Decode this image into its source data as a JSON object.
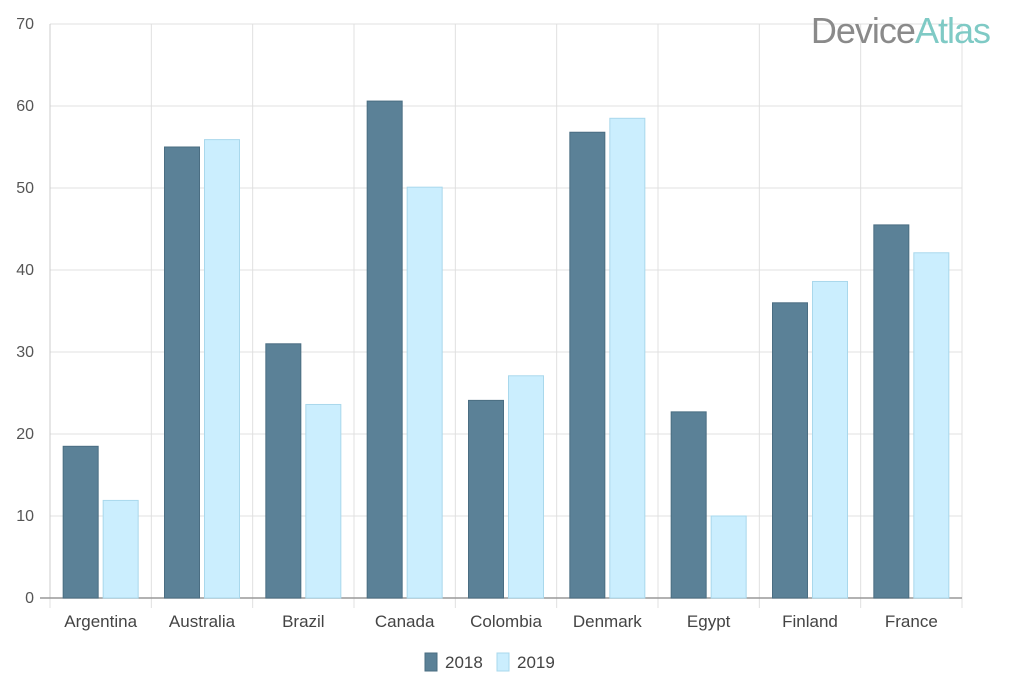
{
  "brand": {
    "logo_part1": "Device",
    "logo_part2": "Atlas",
    "logo_color1": "#8a8a8a",
    "logo_color2": "#7fcac5"
  },
  "chart_data": {
    "type": "bar",
    "categories": [
      "Argentina",
      "Australia",
      "Brazil",
      "Canada",
      "Colombia",
      "Denmark",
      "Egypt",
      "Finland",
      "France"
    ],
    "series": [
      {
        "name": "2018",
        "color": "#5b8197",
        "values": [
          18.5,
          55.0,
          31.0,
          60.6,
          24.1,
          56.8,
          22.7,
          36.0,
          45.5
        ]
      },
      {
        "name": "2019",
        "color": "#cbeefe",
        "values": [
          11.9,
          55.9,
          23.6,
          50.1,
          27.1,
          58.5,
          10.0,
          38.6,
          42.1
        ]
      }
    ],
    "ylim": [
      0,
      70
    ],
    "yticks": [
      0,
      10,
      20,
      30,
      40,
      50,
      60,
      70
    ],
    "grid": true,
    "legend": "bottom-center",
    "title": "",
    "xlabel": "",
    "ylabel": ""
  }
}
